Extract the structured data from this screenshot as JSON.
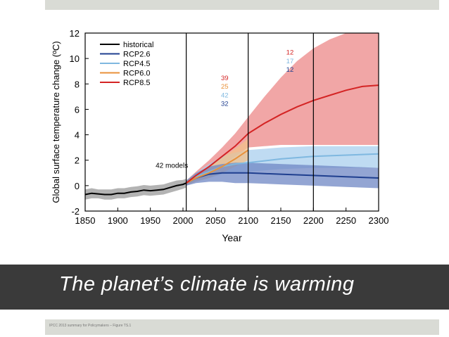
{
  "slide": {
    "title": "The planet’s climate is warming",
    "source_note": "IPCC 2013 summary for Policymakers – Figure TS.1"
  },
  "chart_data": {
    "type": "line",
    "title": "",
    "xlabel": "Year",
    "ylabel": "Global surface temperature change (ºC)",
    "xlim": [
      1850,
      2300
    ],
    "ylim": [
      -2,
      12
    ],
    "x_ticks": [
      1850,
      1900,
      1950,
      2000,
      2050,
      2100,
      2150,
      2200,
      2250,
      2300
    ],
    "y_ticks": [
      -2,
      0,
      2,
      4,
      6,
      8,
      10,
      12
    ],
    "vertical_lines": [
      2005,
      2100,
      2200
    ],
    "annotation": "42 models",
    "model_counts": [
      {
        "period": "2006-2100",
        "values": [
          {
            "scenario": "RCP8.5",
            "count": "39"
          },
          {
            "scenario": "RCP6.0",
            "count": "25"
          },
          {
            "scenario": "RCP4.5",
            "count": "42"
          },
          {
            "scenario": "RCP2.6",
            "count": "32"
          }
        ]
      },
      {
        "period": "2100-2300",
        "values": [
          {
            "scenario": "RCP8.5",
            "count": "12"
          },
          {
            "scenario": "RCP4.5",
            "count": "17"
          },
          {
            "scenario": "RCP2.6",
            "count": "12"
          }
        ]
      }
    ],
    "legend_position": "top-left",
    "series": [
      {
        "name": "historical",
        "color": "#000000",
        "band_color": "#9a9a9a",
        "x": [
          1850,
          1860,
          1870,
          1880,
          1890,
          1900,
          1910,
          1920,
          1930,
          1940,
          1950,
          1960,
          1970,
          1980,
          1990,
          2000,
          2005
        ],
        "y": [
          -0.7,
          -0.6,
          -0.65,
          -0.7,
          -0.7,
          -0.6,
          -0.6,
          -0.5,
          -0.45,
          -0.35,
          -0.4,
          -0.35,
          -0.3,
          -0.15,
          0.0,
          0.1,
          0.2
        ],
        "lower": [
          -1.1,
          -1.0,
          -1.0,
          -1.1,
          -1.1,
          -1.0,
          -1.0,
          -0.9,
          -0.85,
          -0.75,
          -0.8,
          -0.75,
          -0.7,
          -0.55,
          -0.4,
          -0.25,
          -0.15
        ],
        "upper": [
          -0.3,
          -0.2,
          -0.3,
          -0.3,
          -0.3,
          -0.2,
          -0.2,
          -0.1,
          -0.05,
          0.05,
          0.0,
          0.05,
          0.1,
          0.25,
          0.4,
          0.45,
          0.55
        ]
      },
      {
        "name": "RCP2.6",
        "color": "#1f3f8f",
        "band_color": "#6f87c4",
        "x": [
          2005,
          2020,
          2040,
          2060,
          2080,
          2100,
          2150,
          2200,
          2250,
          2300
        ],
        "y": [
          0.2,
          0.6,
          0.9,
          1.0,
          1.0,
          1.0,
          0.9,
          0.8,
          0.7,
          0.6
        ],
        "lower": [
          0.0,
          0.2,
          0.3,
          0.3,
          0.2,
          0.2,
          0.1,
          0.0,
          -0.1,
          -0.2
        ],
        "upper": [
          0.4,
          1.0,
          1.5,
          1.7,
          1.8,
          1.8,
          1.7,
          1.6,
          1.5,
          1.4
        ]
      },
      {
        "name": "RCP4.5",
        "color": "#7fb8e0",
        "band_color": "#a9cfee",
        "x": [
          2005,
          2020,
          2040,
          2060,
          2080,
          2100,
          2150,
          2200,
          2250,
          2300
        ],
        "y": [
          0.2,
          0.7,
          1.1,
          1.5,
          1.7,
          1.8,
          2.1,
          2.3,
          2.4,
          2.5
        ],
        "lower": [
          0.0,
          0.4,
          0.6,
          0.9,
          1.0,
          1.1,
          1.3,
          1.4,
          1.4,
          1.4
        ],
        "upper": [
          0.4,
          1.0,
          1.7,
          2.3,
          2.6,
          2.8,
          3.0,
          3.1,
          3.1,
          3.1
        ]
      },
      {
        "name": "RCP6.0",
        "color": "#e8913a",
        "band_color": "#f2c08a",
        "x": [
          2005,
          2020,
          2040,
          2060,
          2080,
          2100
        ],
        "y": [
          0.2,
          0.6,
          1.0,
          1.5,
          2.1,
          2.8
        ],
        "lower": [
          0.0,
          0.3,
          0.6,
          1.0,
          1.5,
          2.0
        ],
        "upper": [
          0.4,
          0.9,
          1.5,
          2.2,
          2.9,
          3.7
        ]
      },
      {
        "name": "RCP8.5",
        "color": "#d42424",
        "band_color": "#ef9696",
        "x": [
          2005,
          2020,
          2040,
          2060,
          2080,
          2100,
          2125,
          2150,
          2175,
          2200,
          2225,
          2250,
          2275,
          2300
        ],
        "y": [
          0.2,
          0.8,
          1.5,
          2.3,
          3.1,
          4.1,
          4.9,
          5.6,
          6.2,
          6.7,
          7.1,
          7.5,
          7.8,
          7.9
        ],
        "lower": [
          0.0,
          0.5,
          1.0,
          1.6,
          2.3,
          3.0,
          3.1,
          3.2,
          3.2,
          3.2,
          3.2,
          3.2,
          3.2,
          3.2
        ],
        "upper": [
          0.4,
          1.1,
          2.0,
          3.0,
          4.1,
          5.4,
          7.0,
          8.5,
          9.8,
          10.8,
          11.5,
          12.0,
          12.0,
          12.0
        ]
      }
    ]
  }
}
